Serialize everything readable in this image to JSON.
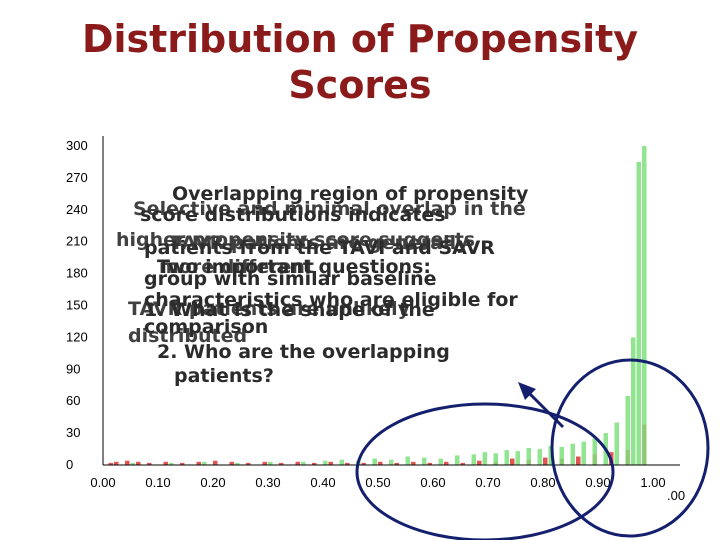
{
  "slide": {
    "title_line1": "Distribution of Propensity",
    "title_line2": "Scores"
  },
  "chart_data": {
    "type": "bar",
    "y_ticks": [
      "300",
      "270",
      "240",
      "210",
      "180",
      "150",
      "120",
      "90",
      "60",
      "30",
      "0"
    ],
    "x_ticks": [
      "0.00",
      "0.10",
      "0.20",
      "0.30",
      "0.40",
      "0.50",
      "0.60",
      "0.70",
      "0.80",
      "0.90",
      "1.00"
    ],
    "x_tick_extra": ".00",
    "xlim": [
      0,
      1
    ],
    "ylim": [
      0,
      300
    ],
    "bin_width": 0.01,
    "series": [
      {
        "color": "#d81b1b",
        "x": [
          0.02,
          0.03,
          0.05,
          0.07,
          0.09,
          0.12,
          0.15,
          0.18,
          0.21,
          0.24,
          0.27,
          0.3,
          0.33,
          0.36,
          0.39,
          0.42,
          0.45,
          0.48,
          0.51,
          0.54,
          0.57,
          0.6,
          0.63,
          0.66,
          0.69,
          0.72,
          0.75,
          0.78,
          0.81,
          0.84,
          0.87,
          0.9,
          0.93,
          0.96,
          0.99
        ],
        "y": [
          2,
          3,
          4,
          3,
          2,
          3,
          2,
          3,
          4,
          3,
          2,
          3,
          2,
          3,
          2,
          3,
          2,
          2,
          3,
          2,
          3,
          2,
          3,
          2,
          4,
          3,
          6,
          5,
          7,
          6,
          8,
          10,
          12,
          14,
          38
        ]
      },
      {
        "color": "#7ee07e",
        "x": [
          0.06,
          0.13,
          0.19,
          0.25,
          0.31,
          0.37,
          0.41,
          0.44,
          0.47,
          0.5,
          0.53,
          0.56,
          0.59,
          0.62,
          0.65,
          0.68,
          0.7,
          0.72,
          0.74,
          0.76,
          0.78,
          0.8,
          0.82,
          0.84,
          0.86,
          0.88,
          0.9,
          0.92,
          0.94,
          0.96,
          0.97,
          0.98,
          0.99
        ],
        "y": [
          2,
          2,
          3,
          2,
          3,
          3,
          4,
          5,
          4,
          6,
          5,
          8,
          7,
          6,
          9,
          10,
          12,
          11,
          14,
          13,
          16,
          15,
          18,
          17,
          20,
          22,
          25,
          30,
          40,
          65,
          120,
          285,
          300
        ]
      }
    ],
    "annotations": {
      "layer1": [
        "Overlapping region of propensity",
        "score distributions indicates",
        "patients from the TAVI and SAVR",
        "group with similar baseline",
        "characteristics who are eligible for",
        "comparison"
      ],
      "layer2": [
        "Selective and minimal overlap in the",
        "higher propensity score suggests",
        "TAVR patients are generally",
        "more different",
        "TAVR patients are unlikely",
        "distributed"
      ],
      "layer3": [
        "Two important questions:",
        "1. What is the shape of the",
        "2. Who are the overlapping",
        "patients?"
      ]
    }
  }
}
